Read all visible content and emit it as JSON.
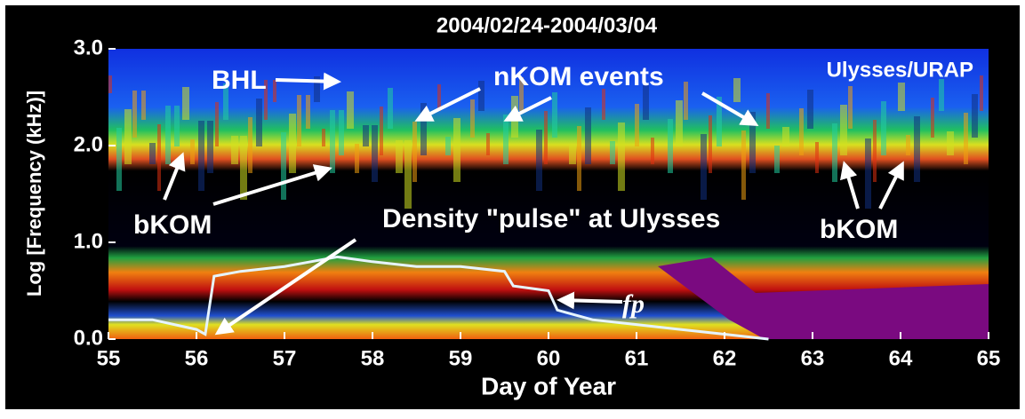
{
  "chart_data": {
    "type": "spectrogram",
    "title": "2004/02/24-2004/03/04",
    "x_label": "Day of Year",
    "y_label": "Log [Frequency (kHz)]",
    "xlim": [
      55,
      65
    ],
    "xticks": [
      55,
      56,
      57,
      58,
      59,
      60,
      61,
      62,
      63,
      64,
      65
    ],
    "ylim": [
      0,
      3
    ],
    "yticks": [
      {
        "value": 0,
        "label": "0.0"
      },
      {
        "value": 1,
        "label": "1.0"
      },
      {
        "value": 2,
        "label": "2.0"
      },
      {
        "value": 3,
        "label": "3.0"
      }
    ],
    "annotations": [
      "BHL",
      "nKOM events",
      "Ulysses/URAP",
      "bKOM",
      "Density \"pulse\" at Ulysses",
      "bKOM",
      "fp"
    ],
    "x": [
      55,
      55.5,
      56,
      56.1,
      56.2,
      56.5,
      57,
      57.3,
      57.6,
      58,
      58.5,
      59,
      59.5,
      59.6,
      60,
      60.1,
      60.5,
      61,
      61.5,
      62,
      62.5
    ],
    "series": [
      {
        "color": "#e6f4ff",
        "values": [
          0.2,
          0.2,
          0.1,
          0.05,
          0.65,
          0.7,
          0.75,
          0.8,
          0.85,
          0.8,
          0.75,
          0.75,
          0.7,
          0.55,
          0.5,
          0.3,
          0.2,
          0.15,
          0.1,
          0.05,
          0.0
        ]
      }
    ]
  }
}
